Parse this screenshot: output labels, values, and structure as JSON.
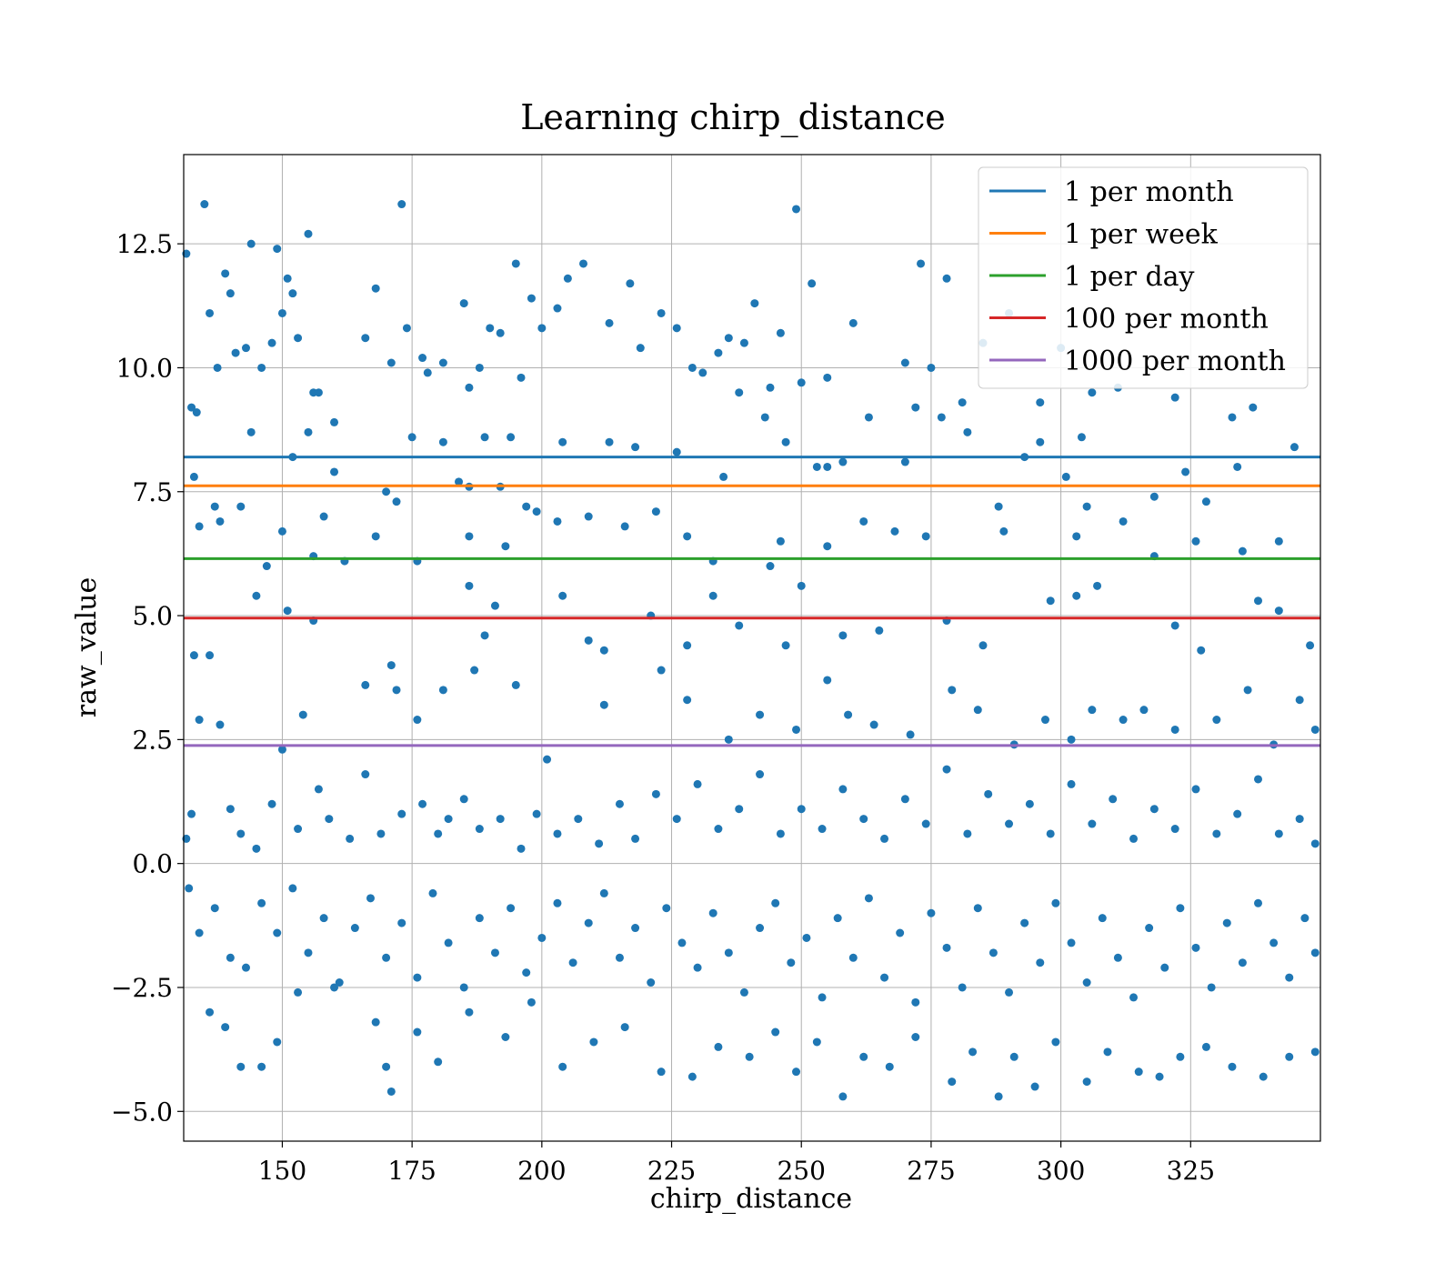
{
  "chart_data": {
    "type": "scatter",
    "title": "Learning chirp_distance",
    "xlabel": "chirp_distance",
    "ylabel": "raw_value",
    "xlim": [
      131,
      350
    ],
    "ylim": [
      -5.6,
      14.3
    ],
    "grid": true,
    "legend_position": "top-right",
    "xticks": [
      150,
      175,
      200,
      225,
      250,
      275,
      300,
      325
    ],
    "yticks": [
      -5.0,
      -2.5,
      0.0,
      2.5,
      5.0,
      7.5,
      10.0,
      12.5
    ],
    "xtick_labels": [
      "150",
      "175",
      "200",
      "225",
      "250",
      "275",
      "300",
      "325"
    ],
    "ytick_labels": [
      "−5.0",
      "−2.5",
      "0.0",
      "2.5",
      "5.0",
      "7.5",
      "10.0",
      "12.5"
    ],
    "scatter_color": "#1f77b4",
    "points": [
      [
        131.5,
        12.3
      ],
      [
        132.5,
        9.2
      ],
      [
        133.5,
        9.1
      ],
      [
        135,
        13.3
      ],
      [
        136,
        11.1
      ],
      [
        137.5,
        10.0
      ],
      [
        139,
        11.9
      ],
      [
        140,
        11.5
      ],
      [
        141,
        10.3
      ],
      [
        143,
        10.4
      ],
      [
        144,
        12.5
      ],
      [
        146,
        10.0
      ],
      [
        148,
        10.5
      ],
      [
        149,
        12.4
      ],
      [
        150,
        11.1
      ],
      [
        151,
        11.8
      ],
      [
        152,
        11.5
      ],
      [
        153,
        10.6
      ],
      [
        155,
        12.7
      ],
      [
        156,
        9.5
      ],
      [
        157,
        9.5
      ],
      [
        160,
        8.9
      ],
      [
        166,
        10.6
      ],
      [
        168,
        11.6
      ],
      [
        171,
        10.1
      ],
      [
        173,
        13.3
      ],
      [
        174,
        10.8
      ],
      [
        177,
        10.2
      ],
      [
        178,
        9.9
      ],
      [
        181,
        10.1
      ],
      [
        185,
        11.3
      ],
      [
        186,
        9.6
      ],
      [
        188,
        10.0
      ],
      [
        190,
        10.8
      ],
      [
        192,
        10.7
      ],
      [
        195,
        12.1
      ],
      [
        196,
        9.8
      ],
      [
        198,
        11.4
      ],
      [
        200,
        10.8
      ],
      [
        203,
        11.2
      ],
      [
        205,
        11.8
      ],
      [
        208,
        12.1
      ],
      [
        213,
        10.9
      ],
      [
        217,
        11.7
      ],
      [
        219,
        10.4
      ],
      [
        223,
        11.1
      ],
      [
        226,
        10.8
      ],
      [
        229,
        10.0
      ],
      [
        231,
        9.9
      ],
      [
        234,
        10.3
      ],
      [
        236,
        10.6
      ],
      [
        239,
        10.5
      ],
      [
        241,
        11.3
      ],
      [
        244,
        9.6
      ],
      [
        246,
        10.7
      ],
      [
        249,
        13.2
      ],
      [
        250,
        9.7
      ],
      [
        252,
        11.7
      ],
      [
        255,
        9.8
      ],
      [
        260,
        10.9
      ],
      [
        263,
        9.0
      ],
      [
        270,
        10.1
      ],
      [
        273,
        12.1
      ],
      [
        275,
        10.0
      ],
      [
        278,
        11.8
      ],
      [
        281,
        9.3
      ],
      [
        285,
        10.5
      ],
      [
        290,
        11.1
      ],
      [
        293,
        8.2
      ],
      [
        296,
        9.3
      ],
      [
        300,
        10.4
      ],
      [
        304,
        8.6
      ],
      [
        306,
        9.5
      ],
      [
        311,
        9.6
      ],
      [
        322,
        9.4
      ],
      [
        333,
        9.0
      ],
      [
        337,
        9.2
      ],
      [
        133,
        7.8
      ],
      [
        137,
        7.2
      ],
      [
        138,
        6.9
      ],
      [
        144,
        8.7
      ],
      [
        152,
        8.2
      ],
      [
        155,
        8.7
      ],
      [
        158,
        7.0
      ],
      [
        160,
        7.9
      ],
      [
        170,
        7.5
      ],
      [
        172,
        7.3
      ],
      [
        175,
        8.6
      ],
      [
        181,
        8.5
      ],
      [
        184,
        7.7
      ],
      [
        186,
        7.6
      ],
      [
        189,
        8.6
      ],
      [
        192,
        7.6
      ],
      [
        194,
        8.6
      ],
      [
        197,
        7.2
      ],
      [
        199,
        7.1
      ],
      [
        204,
        8.5
      ],
      [
        209,
        7.0
      ],
      [
        213,
        8.5
      ],
      [
        218,
        8.4
      ],
      [
        222,
        7.1
      ],
      [
        226,
        8.3
      ],
      [
        235,
        7.8
      ],
      [
        238,
        9.5
      ],
      [
        243,
        9.0
      ],
      [
        247,
        8.5
      ],
      [
        253,
        8.0
      ],
      [
        255,
        8.0
      ],
      [
        258,
        8.1
      ],
      [
        270,
        8.1
      ],
      [
        272,
        9.2
      ],
      [
        277,
        9.0
      ],
      [
        282,
        8.7
      ],
      [
        288,
        7.2
      ],
      [
        296,
        8.5
      ],
      [
        301,
        7.8
      ],
      [
        305,
        7.2
      ],
      [
        318,
        7.4
      ],
      [
        324,
        7.9
      ],
      [
        328,
        7.3
      ],
      [
        334,
        8.0
      ],
      [
        345,
        8.4
      ],
      [
        134,
        6.8
      ],
      [
        142,
        7.2
      ],
      [
        147,
        6.0
      ],
      [
        150,
        6.7
      ],
      [
        156,
        6.2
      ],
      [
        162,
        6.1
      ],
      [
        168,
        6.6
      ],
      [
        176,
        6.1
      ],
      [
        186,
        6.6
      ],
      [
        193,
        6.4
      ],
      [
        203,
        6.9
      ],
      [
        216,
        6.8
      ],
      [
        228,
        6.6
      ],
      [
        233,
        6.1
      ],
      [
        244,
        6.0
      ],
      [
        246,
        6.5
      ],
      [
        255,
        6.4
      ],
      [
        262,
        6.9
      ],
      [
        268,
        6.7
      ],
      [
        274,
        6.6
      ],
      [
        289,
        6.7
      ],
      [
        303,
        6.6
      ],
      [
        312,
        6.9
      ],
      [
        318,
        6.2
      ],
      [
        326,
        6.5
      ],
      [
        335,
        6.3
      ],
      [
        342,
        6.5
      ],
      [
        133,
        4.2
      ],
      [
        136,
        4.2
      ],
      [
        145,
        5.4
      ],
      [
        151,
        5.1
      ],
      [
        156,
        4.9
      ],
      [
        171,
        4.0
      ],
      [
        186,
        5.6
      ],
      [
        189,
        4.6
      ],
      [
        191,
        5.2
      ],
      [
        204,
        5.4
      ],
      [
        209,
        4.5
      ],
      [
        212,
        4.3
      ],
      [
        221,
        5.0
      ],
      [
        228,
        4.4
      ],
      [
        233,
        5.4
      ],
      [
        238,
        4.8
      ],
      [
        247,
        4.4
      ],
      [
        250,
        5.6
      ],
      [
        258,
        4.6
      ],
      [
        265,
        4.7
      ],
      [
        278,
        4.9
      ],
      [
        285,
        4.4
      ],
      [
        298,
        5.3
      ],
      [
        303,
        5.4
      ],
      [
        307,
        5.6
      ],
      [
        322,
        4.8
      ],
      [
        327,
        4.3
      ],
      [
        338,
        5.3
      ],
      [
        342,
        5.1
      ],
      [
        348,
        4.4
      ],
      [
        134,
        2.9
      ],
      [
        138,
        2.8
      ],
      [
        150,
        2.3
      ],
      [
        154,
        3.0
      ],
      [
        166,
        3.6
      ],
      [
        172,
        3.5
      ],
      [
        176,
        2.9
      ],
      [
        181,
        3.5
      ],
      [
        187,
        3.9
      ],
      [
        195,
        3.6
      ],
      [
        201,
        2.1
      ],
      [
        212,
        3.2
      ],
      [
        223,
        3.9
      ],
      [
        228,
        3.3
      ],
      [
        236,
        2.5
      ],
      [
        242,
        3.0
      ],
      [
        249,
        2.7
      ],
      [
        255,
        3.7
      ],
      [
        259,
        3.0
      ],
      [
        264,
        2.8
      ],
      [
        271,
        2.6
      ],
      [
        279,
        3.5
      ],
      [
        284,
        3.1
      ],
      [
        291,
        2.4
      ],
      [
        297,
        2.9
      ],
      [
        302,
        2.5
      ],
      [
        306,
        3.1
      ],
      [
        312,
        2.9
      ],
      [
        316,
        3.1
      ],
      [
        322,
        2.7
      ],
      [
        330,
        2.9
      ],
      [
        336,
        3.5
      ],
      [
        341,
        2.4
      ],
      [
        346,
        3.3
      ],
      [
        349,
        2.7
      ],
      [
        131.5,
        0.5
      ],
      [
        132.5,
        1.0
      ],
      [
        140,
        1.1
      ],
      [
        142,
        0.6
      ],
      [
        145,
        0.3
      ],
      [
        148,
        1.2
      ],
      [
        153,
        0.7
      ],
      [
        157,
        1.5
      ],
      [
        159,
        0.9
      ],
      [
        163,
        0.5
      ],
      [
        166,
        1.8
      ],
      [
        169,
        0.6
      ],
      [
        173,
        1.0
      ],
      [
        177,
        1.2
      ],
      [
        180,
        0.6
      ],
      [
        182,
        0.9
      ],
      [
        185,
        1.3
      ],
      [
        188,
        0.7
      ],
      [
        192,
        0.9
      ],
      [
        196,
        0.3
      ],
      [
        199,
        1.0
      ],
      [
        203,
        0.6
      ],
      [
        207,
        0.9
      ],
      [
        211,
        0.4
      ],
      [
        215,
        1.2
      ],
      [
        218,
        0.5
      ],
      [
        222,
        1.4
      ],
      [
        226,
        0.9
      ],
      [
        230,
        1.6
      ],
      [
        234,
        0.7
      ],
      [
        238,
        1.1
      ],
      [
        242,
        1.8
      ],
      [
        246,
        0.6
      ],
      [
        250,
        1.1
      ],
      [
        254,
        0.7
      ],
      [
        258,
        1.5
      ],
      [
        262,
        0.9
      ],
      [
        266,
        0.5
      ],
      [
        270,
        1.3
      ],
      [
        274,
        0.8
      ],
      [
        278,
        1.9
      ],
      [
        282,
        0.6
      ],
      [
        286,
        1.4
      ],
      [
        290,
        0.8
      ],
      [
        294,
        1.2
      ],
      [
        298,
        0.6
      ],
      [
        302,
        1.6
      ],
      [
        306,
        0.8
      ],
      [
        310,
        1.3
      ],
      [
        314,
        0.5
      ],
      [
        318,
        1.1
      ],
      [
        322,
        0.7
      ],
      [
        326,
        1.5
      ],
      [
        330,
        0.6
      ],
      [
        334,
        1.0
      ],
      [
        338,
        1.7
      ],
      [
        342,
        0.6
      ],
      [
        346,
        0.9
      ],
      [
        349,
        0.4
      ],
      [
        132,
        -0.5
      ],
      [
        134,
        -1.4
      ],
      [
        137,
        -0.9
      ],
      [
        140,
        -1.9
      ],
      [
        143,
        -2.1
      ],
      [
        146,
        -0.8
      ],
      [
        149,
        -1.4
      ],
      [
        152,
        -0.5
      ],
      [
        155,
        -1.8
      ],
      [
        158,
        -1.1
      ],
      [
        161,
        -2.4
      ],
      [
        164,
        -1.3
      ],
      [
        167,
        -0.7
      ],
      [
        170,
        -1.9
      ],
      [
        173,
        -1.2
      ],
      [
        176,
        -2.3
      ],
      [
        179,
        -0.6
      ],
      [
        182,
        -1.6
      ],
      [
        185,
        -2.5
      ],
      [
        188,
        -1.1
      ],
      [
        191,
        -1.8
      ],
      [
        194,
        -0.9
      ],
      [
        197,
        -2.2
      ],
      [
        200,
        -1.5
      ],
      [
        203,
        -0.8
      ],
      [
        206,
        -2.0
      ],
      [
        209,
        -1.2
      ],
      [
        212,
        -0.6
      ],
      [
        215,
        -1.9
      ],
      [
        218,
        -1.3
      ],
      [
        221,
        -2.4
      ],
      [
        224,
        -0.9
      ],
      [
        227,
        -1.6
      ],
      [
        230,
        -2.1
      ],
      [
        233,
        -1.0
      ],
      [
        236,
        -1.8
      ],
      [
        239,
        -2.6
      ],
      [
        242,
        -1.3
      ],
      [
        245,
        -0.8
      ],
      [
        248,
        -2.0
      ],
      [
        251,
        -1.5
      ],
      [
        254,
        -2.7
      ],
      [
        257,
        -1.1
      ],
      [
        260,
        -1.9
      ],
      [
        263,
        -0.7
      ],
      [
        266,
        -2.3
      ],
      [
        269,
        -1.4
      ],
      [
        272,
        -2.8
      ],
      [
        275,
        -1.0
      ],
      [
        278,
        -1.7
      ],
      [
        281,
        -2.5
      ],
      [
        284,
        -0.9
      ],
      [
        287,
        -1.8
      ],
      [
        290,
        -2.6
      ],
      [
        293,
        -1.2
      ],
      [
        296,
        -2.0
      ],
      [
        299,
        -0.8
      ],
      [
        302,
        -1.6
      ],
      [
        305,
        -2.4
      ],
      [
        308,
        -1.1
      ],
      [
        311,
        -1.9
      ],
      [
        314,
        -2.7
      ],
      [
        317,
        -1.3
      ],
      [
        320,
        -2.1
      ],
      [
        323,
        -0.9
      ],
      [
        326,
        -1.7
      ],
      [
        329,
        -2.5
      ],
      [
        332,
        -1.2
      ],
      [
        335,
        -2.0
      ],
      [
        338,
        -0.8
      ],
      [
        341,
        -1.6
      ],
      [
        344,
        -2.3
      ],
      [
        347,
        -1.1
      ],
      [
        349,
        -1.8
      ],
      [
        136,
        -3.0
      ],
      [
        139,
        -3.3
      ],
      [
        142,
        -4.1
      ],
      [
        146,
        -4.1
      ],
      [
        149,
        -3.6
      ],
      [
        153,
        -2.6
      ],
      [
        160,
        -2.5
      ],
      [
        168,
        -3.2
      ],
      [
        171,
        -4.6
      ],
      [
        170,
        -4.1
      ],
      [
        176,
        -3.4
      ],
      [
        180,
        -4.0
      ],
      [
        186,
        -3.0
      ],
      [
        193,
        -3.5
      ],
      [
        198,
        -2.8
      ],
      [
        204,
        -4.1
      ],
      [
        210,
        -3.6
      ],
      [
        216,
        -3.3
      ],
      [
        223,
        -4.2
      ],
      [
        229,
        -4.3
      ],
      [
        234,
        -3.7
      ],
      [
        240,
        -3.9
      ],
      [
        245,
        -3.4
      ],
      [
        249,
        -4.2
      ],
      [
        253,
        -3.6
      ],
      [
        258,
        -4.7
      ],
      [
        262,
        -3.9
      ],
      [
        267,
        -4.1
      ],
      [
        272,
        -3.5
      ],
      [
        279,
        -4.4
      ],
      [
        283,
        -3.8
      ],
      [
        288,
        -4.7
      ],
      [
        291,
        -3.9
      ],
      [
        295,
        -4.5
      ],
      [
        299,
        -3.6
      ],
      [
        305,
        -4.4
      ],
      [
        309,
        -3.8
      ],
      [
        315,
        -4.2
      ],
      [
        319,
        -4.3
      ],
      [
        323,
        -3.9
      ],
      [
        328,
        -3.7
      ],
      [
        333,
        -4.1
      ],
      [
        339,
        -4.3
      ],
      [
        344,
        -3.9
      ],
      [
        349,
        -3.8
      ]
    ],
    "series": [
      {
        "name": "1 per month",
        "y": 8.2,
        "color": "#1f77b4"
      },
      {
        "name": "1 per week",
        "y": 7.62,
        "color": "#ff7f0e"
      },
      {
        "name": "1 per day",
        "y": 6.15,
        "color": "#2ca02c"
      },
      {
        "name": "100 per month",
        "y": 4.95,
        "color": "#d62728"
      },
      {
        "name": "1000 per month",
        "y": 2.38,
        "color": "#9467bd"
      }
    ]
  }
}
